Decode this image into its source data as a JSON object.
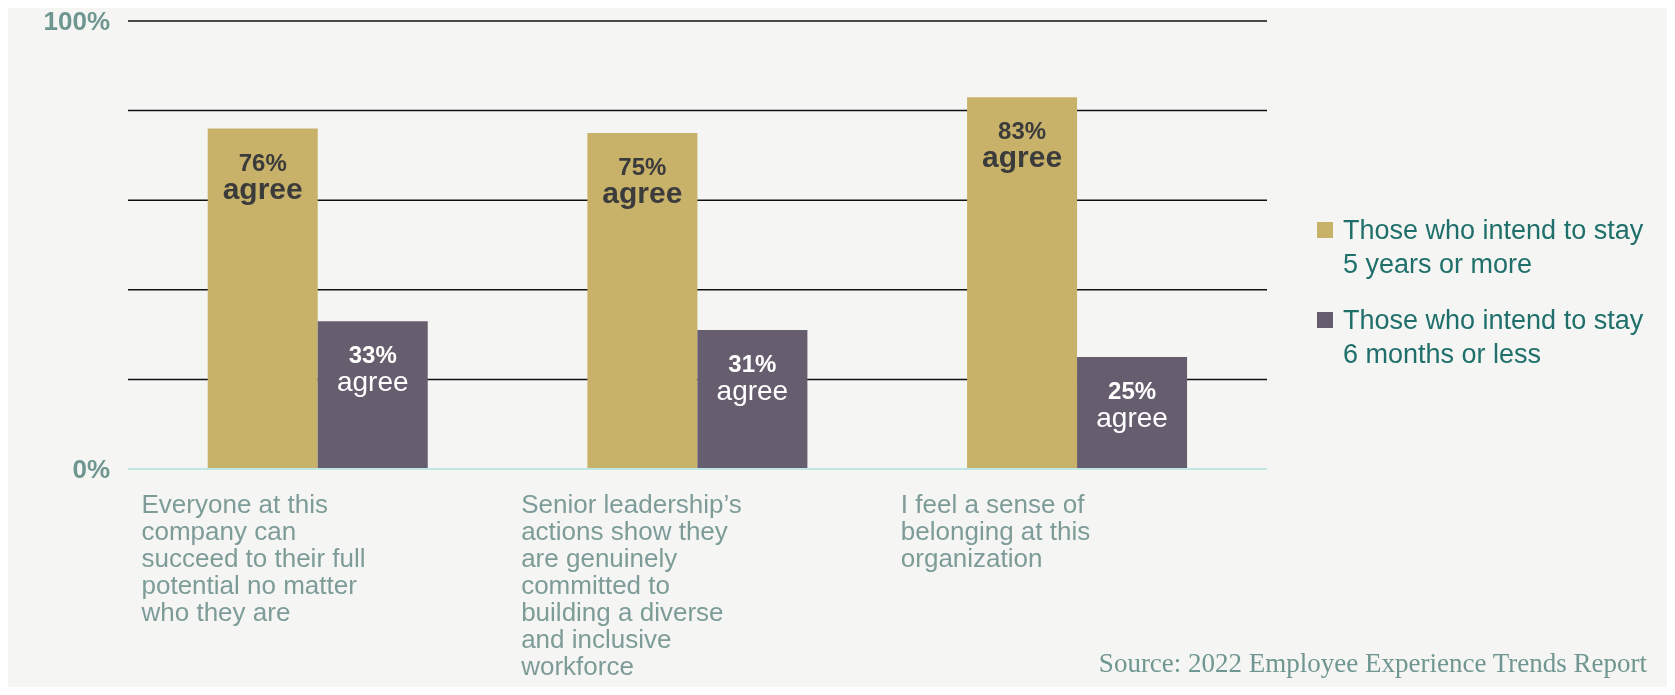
{
  "chart_data": {
    "type": "bar",
    "categories": [
      "Everyone at this company can succeed to their full potential no matter who they are",
      "Senior leadership’s actions show they are genuinely committed to building a diverse and inclusive workforce",
      "I feel a sense of belonging at this organization"
    ],
    "series": [
      {
        "name": "Those who intend to stay 5 years or more",
        "color": "#c8b26a",
        "values": [
          76,
          75,
          83
        ],
        "value_labels": [
          "76% agree",
          "75% agree",
          "83% agree"
        ]
      },
      {
        "name": "Those who intend to stay 6 months or less",
        "color": "#665e6e",
        "values": [
          33,
          31,
          25
        ],
        "value_labels": [
          "33% agree",
          "31% agree",
          "25% agree"
        ]
      }
    ],
    "ylim": [
      0,
      100
    ],
    "yticks": [
      {
        "value": 0,
        "label": "0%"
      },
      {
        "value": 20,
        "label": null
      },
      {
        "value": 40,
        "label": null
      },
      {
        "value": 60,
        "label": null
      },
      {
        "value": 80,
        "label": null
      },
      {
        "value": 100,
        "label": "100%"
      }
    ],
    "grid": "y",
    "legend": "right",
    "annotations": [
      "Source: 2022 Employee Experience Trends Report"
    ]
  }
}
